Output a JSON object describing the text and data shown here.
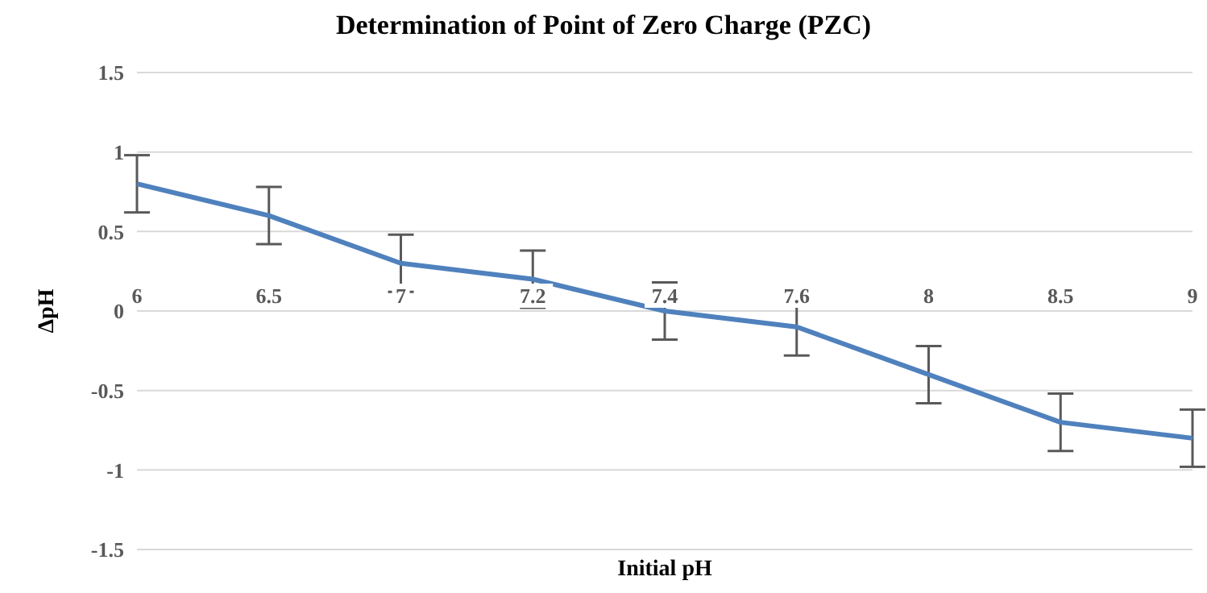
{
  "chart_data": {
    "type": "line",
    "title": "Determination of Point of Zero Charge (PZC)",
    "xlabel": "Initial pH",
    "ylabel": "ΔpH",
    "categories": [
      "6",
      "6.5",
      "7",
      "7.2",
      "7.4",
      "7.6",
      "8",
      "8.5",
      "9"
    ],
    "series": [
      {
        "color": "#4f81bd",
        "values": [
          0.8,
          0.6,
          0.3,
          0.2,
          0,
          -0.1,
          -0.4,
          -0.7,
          -0.8
        ],
        "errors": [
          0.18,
          0.18,
          0.18,
          0.18,
          0.18,
          0.18,
          0.18,
          0.18,
          0.18
        ]
      }
    ],
    "ylim": [
      -1.5,
      1.5
    ],
    "yticks": [
      -1.5,
      -1,
      -0.5,
      0,
      0.5,
      1,
      1.5
    ],
    "grid": "y",
    "legend": false,
    "marker": "none",
    "line_style": "solid"
  }
}
